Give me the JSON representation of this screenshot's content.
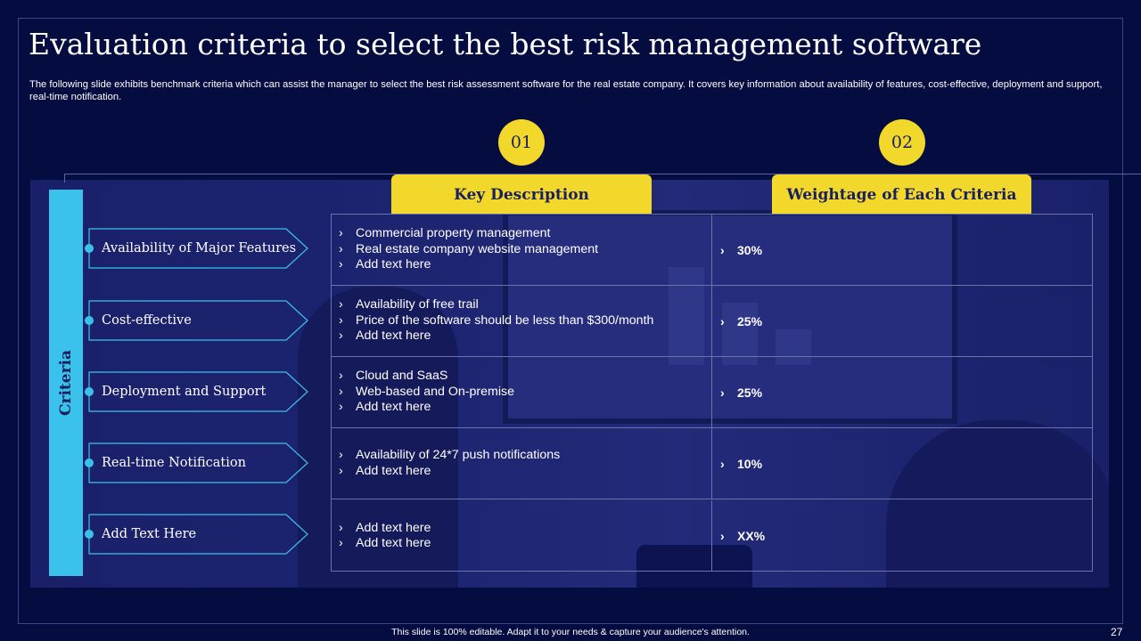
{
  "slide": {
    "title": "Evaluation criteria to select the best risk management software",
    "subtitle": "The following slide exhibits benchmark criteria which can assist the manager to select the best risk assessment software for the real estate company. It covers key information about availability of features, cost-effective, deployment and support, real-time notification.",
    "criteria_label": "Criteria",
    "columns": [
      {
        "number": "01",
        "label": "Key Description"
      },
      {
        "number": "02",
        "label": "Weightage of Each Criteria"
      }
    ],
    "bullet_glyph": "›",
    "rows": [
      {
        "criterion": "Availability of Major Features",
        "descriptions": [
          "Commercial property management",
          "Real estate company website management",
          "Add text here"
        ],
        "weight": "30%"
      },
      {
        "criterion": "Cost-effective",
        "descriptions": [
          "Availability  of free trail",
          "Price of the software should be less than $300/month",
          "Add text here"
        ],
        "weight": "25%"
      },
      {
        "criterion": "Deployment and Support",
        "descriptions": [
          "Cloud and SaaS",
          "Web-based and On-premise",
          "Add text here"
        ],
        "weight": "25%"
      },
      {
        "criterion": "Real-time Notification",
        "descriptions": [
          "Availability  of 24*7 push notifications",
          "Add text here"
        ],
        "weight": "10%"
      },
      {
        "criterion": "Add Text Here",
        "descriptions": [
          "Add text here",
          "Add text here"
        ],
        "weight": "XX%"
      }
    ],
    "footer": "This slide is 100% editable. Adapt it to your needs & capture your audience's attention.",
    "page_number": "27"
  },
  "colors": {
    "background": "#050c3f",
    "accent_yellow": "#f2d82a",
    "accent_cyan": "#3ac2ec",
    "text_dark": "#1a1f5e"
  }
}
